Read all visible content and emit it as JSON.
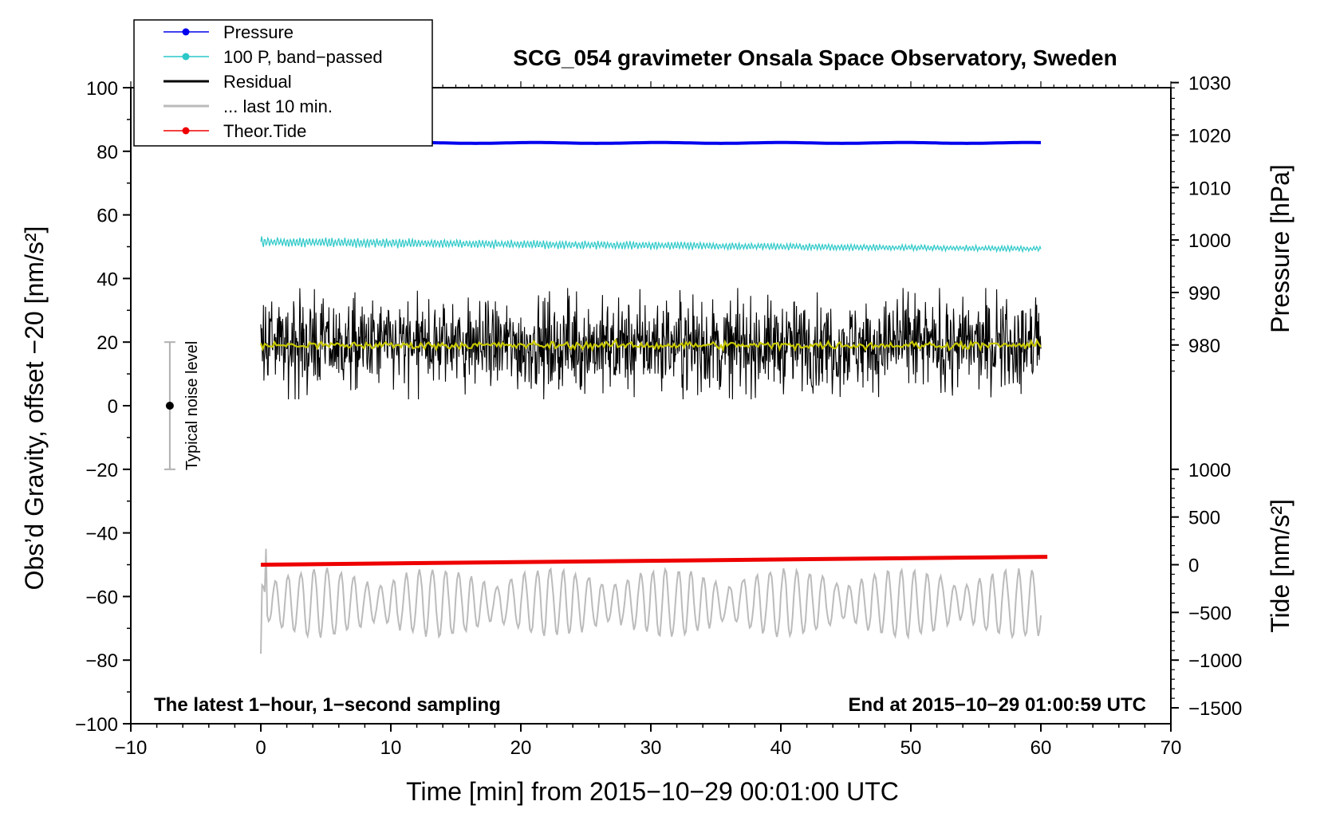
{
  "chart_data": {
    "type": "line",
    "title": "SCG_054 gravimeter Onsala Space Observatory, Sweden",
    "xlabel": "Time [min] from 2015−10−29 00:01:00 UTC",
    "ylabel_left": "Obs’d Gravity, offset −20 [nm/s²]",
    "ylabel_right_pressure": "Pressure [hPa]",
    "ylabel_right_tide": "Tide [nm/s²]",
    "xlim": [
      -10,
      70
    ],
    "ylim": [
      -100,
      100
    ],
    "x_ticks": [
      -10,
      0,
      10,
      20,
      30,
      40,
      50,
      60,
      70
    ],
    "x_tick_labels": [
      "−10",
      "0",
      "10",
      "20",
      "30",
      "40",
      "50",
      "60",
      "70"
    ],
    "y_ticks": [
      -100,
      -80,
      -60,
      -40,
      -20,
      0,
      20,
      40,
      60,
      80,
      100
    ],
    "y_tick_labels": [
      "−100",
      "−80",
      "−60",
      "−40",
      "−20",
      "0",
      "20",
      "40",
      "60",
      "80",
      "100"
    ],
    "pressure_axis": {
      "ticks": [
        980,
        990,
        1000,
        1010,
        1020,
        1030
      ],
      "tick_labels": [
        "980",
        "990",
        "1000",
        "1010",
        "1020",
        "1030"
      ],
      "left_value_at_980": 19.1,
      "left_units_per_hPa": 1.65
    },
    "tide_axis": {
      "ticks": [
        -1500,
        -1000,
        -500,
        0,
        500,
        1000
      ],
      "tick_labels": [
        "−1500",
        "−1000",
        "−500",
        "0",
        "500",
        "1000"
      ],
      "left_value_at_0": -50,
      "left_units_per_nm_s2": 0.03
    },
    "series": [
      {
        "name": "Pressure",
        "legend_label": "Pressure",
        "color": "#0000ee",
        "axis": "pressure",
        "x_range": [
          0,
          60
        ],
        "approx_value": 1018.5,
        "style": "line-marker"
      },
      {
        "name": "100 P, band-passed",
        "legend_label": "100 P, band−passed",
        "color": "#2cc8c8",
        "axis": "left",
        "x_range": [
          0,
          60
        ],
        "start_value": 51.5,
        "end_value": 49.3,
        "noise_amplitude": 1.8,
        "style": "line-marker"
      },
      {
        "name": "Residual",
        "legend_label": "Residual",
        "color": "#000000",
        "axis": "left",
        "x_range": [
          0,
          60
        ],
        "mean_value": 19,
        "noise_amplitude": 7,
        "extreme_min": 2,
        "extreme_max": 37,
        "style": "line"
      },
      {
        "name": "Residual smoothed",
        "legend_label": "",
        "color": "#c8c800",
        "axis": "left",
        "x_range": [
          0,
          60
        ],
        "mean_value": 19,
        "noise_amplitude": 0.6,
        "style": "line"
      },
      {
        "name": "... last 10 min.",
        "legend_label": "... last 10 min.",
        "color": "#bbbbbb",
        "axis": "left",
        "x_range": [
          0,
          60
        ],
        "mean_value": -62,
        "noise_amplitude": 8,
        "extreme_min": -78,
        "extreme_max": -45,
        "style": "line"
      },
      {
        "name": "Theor.Tide",
        "legend_label": "Theor.Tide",
        "color": "#ee0000",
        "axis": "tide",
        "x_range": [
          0,
          60.5
        ],
        "start_value": 0,
        "end_value": 83,
        "style": "line-marker"
      }
    ],
    "noise_level_bar": {
      "x": -7,
      "center": 0,
      "low": -20,
      "high": 20,
      "label": "Typical noise level"
    },
    "annotation_left": "The latest 1−hour, 1−second sampling",
    "annotation_right": "End at 2015−10−29 01:00:59 UTC",
    "legend_position": "top-left"
  }
}
